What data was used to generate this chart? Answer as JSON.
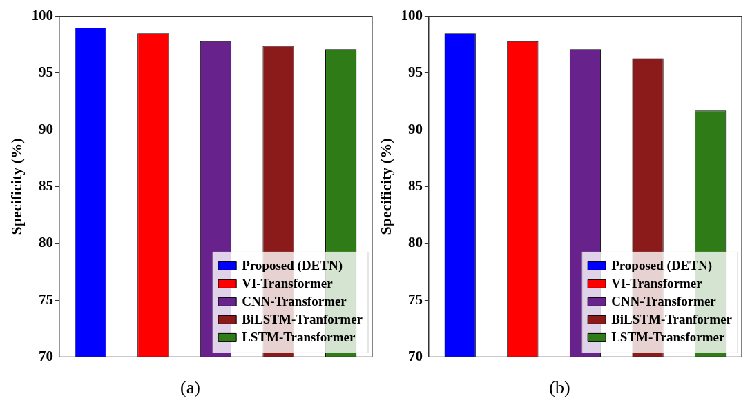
{
  "chart_data": [
    {
      "type": "bar",
      "ylabel": "Specificity (%)",
      "categories": [
        null,
        null,
        null,
        null,
        null
      ],
      "ylim": [
        70,
        100
      ],
      "yticks": [
        70,
        75,
        80,
        85,
        90,
        95,
        100
      ],
      "tick_labels": "y",
      "legend": "bottom right",
      "annotations": [
        "(a)"
      ],
      "series": [
        {
          "name": "Proposed (DETN)",
          "color": "#0000ff",
          "values": [
            99.0,
            null,
            null,
            null,
            null
          ]
        },
        {
          "name": "VI-Transformer",
          "color": "#ff0000",
          "values": [
            null,
            98.5,
            null,
            null,
            null
          ]
        },
        {
          "name": "CNN-Transformer",
          "color": "#67228b",
          "values": [
            null,
            null,
            97.8,
            null,
            null
          ]
        },
        {
          "name": "BiLSTM-Tranformer",
          "color": "#8b1a1a",
          "values": [
            null,
            null,
            null,
            97.4,
            null
          ]
        },
        {
          "name": "LSTM-Transformer",
          "color": "#2e7b18",
          "values": [
            null,
            null,
            null,
            null,
            97.1
          ]
        }
      ]
    },
    {
      "type": "bar",
      "ylabel": "Specificity (%)",
      "categories": [
        null,
        null,
        null,
        null,
        null
      ],
      "ylim": [
        70,
        100
      ],
      "yticks": [
        70,
        75,
        80,
        85,
        90,
        95,
        100
      ],
      "tick_labels": "y",
      "legend": "bottom right",
      "annotations": [
        "(b)"
      ],
      "series": [
        {
          "name": "Proposed (DETN)",
          "color": "#0000ff",
          "values": [
            98.5,
            null,
            null,
            null,
            null
          ]
        },
        {
          "name": "VI-Transformer",
          "color": "#ff0000",
          "values": [
            null,
            97.8,
            null,
            null,
            null
          ]
        },
        {
          "name": "CNN-Transformer",
          "color": "#67228b",
          "values": [
            null,
            null,
            97.1,
            null,
            null
          ]
        },
        {
          "name": "BiLSTM-Tranformer",
          "color": "#8b1a1a",
          "values": [
            null,
            null,
            null,
            96.3,
            null
          ]
        },
        {
          "name": "LSTM-Transformer",
          "color": "#2e7b18",
          "values": [
            null,
            null,
            null,
            null,
            91.7
          ]
        }
      ]
    }
  ]
}
